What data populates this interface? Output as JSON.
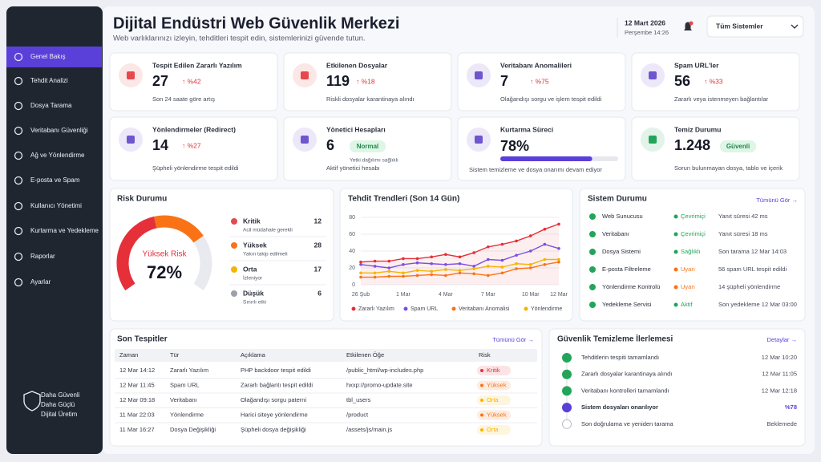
{
  "sidebar": {
    "items": [
      "Genel Bakış",
      "Tehdit Analizi",
      "Dosya Tarama",
      "Veritabanı Güvenliği",
      "Ağ ve Yönlendirme",
      "E-posta ve Spam",
      "Kullanıcı Yönetimi",
      "Kurtarma ve Yedekleme",
      "Raporlar",
      "Ayarlar"
    ],
    "footer": [
      "Daha Güvenli",
      "Daha Güçlü",
      "Dijital Üretim"
    ]
  },
  "header": {
    "title": "Dijital Endüstri Web Güvenlik Merkezi",
    "subtitle": "Web varlıklarınızı izleyin, tehditleri tespit edin, sistemlerinizi güvende tutun.",
    "date": "12 Mart 2026",
    "time": "Perşembe 14:26",
    "system_select": "Tüm Sistemler"
  },
  "cards": [
    {
      "title": "Tespit Edilen Zararlı Yazılım",
      "value": "27",
      "change": "↑ %42",
      "note": "Son 24 saate göre artış",
      "color": "#e5484d"
    },
    {
      "title": "Etkilenen Dosyalar",
      "value": "119",
      "change": "↑ %18",
      "note": "Riskli dosyalar karantinaya alındı",
      "color": "#e5484d"
    },
    {
      "title": "Veritabanı Anomalileri",
      "value": "7",
      "change": "↑ %75",
      "note": "Olağandışı sorgu ve işlem tespit edildi",
      "color": "#6e56cf"
    },
    {
      "title": "Spam URL'ler",
      "value": "56",
      "change": "↑ %33",
      "note": "Zararlı veya istenmeyen bağlantılar",
      "color": "#6e56cf"
    },
    {
      "title": "Yönlendirmeler (Redirect)",
      "value": "14",
      "change": "↑ %27",
      "note": "Şüpheli yönlendirme tespit edildi",
      "color": "#6e56cf"
    },
    {
      "title": "Yönetici Hesapları",
      "value": "6",
      "badge": "Normal",
      "note": "Aktif yönetici hesabı",
      "extra": "Yetki dağılımı sağlıklı",
      "color": "#6e56cf"
    },
    {
      "title": "Kurtarma Süreci",
      "progress": {
        "value": 78,
        "label": "78%"
      },
      "note": "Sistem temizleme ve dosya onarımı devam ediyor",
      "color": "#6e56cf"
    },
    {
      "title": "Temiz Durumu",
      "value": "1.248",
      "badge": "Güvenli",
      "note": "Sorun bulunmayan dosya, tablo ve içerik",
      "color": "#22a55b"
    }
  ],
  "risk": {
    "title": "Risk Durumu",
    "level": "Yüksek Risk",
    "score": {
      "value": 72,
      "label": "72%"
    },
    "levels": [
      {
        "name": "Kritik",
        "desc": "Acil müdahale gerekli",
        "count": 12,
        "color": "#e5484d"
      },
      {
        "name": "Yüksek",
        "desc": "Yakın takip edilmeli",
        "count": 28,
        "color": "#f97316"
      },
      {
        "name": "Orta",
        "desc": "İzleniyor",
        "count": 17,
        "color": "#f5b400"
      },
      {
        "name": "Düşük",
        "desc": "Sınırlı etki",
        "count": 6,
        "color": "#9aa0ac"
      }
    ]
  },
  "trend": {
    "type": "line",
    "title": "Tehdit Trendleri (Son 14 Gün)",
    "categories": [
      "26 Şub",
      null,
      null,
      "1 Mar",
      null,
      null,
      "4 Mar",
      null,
      null,
      "7 Mar",
      null,
      null,
      "10 Mar",
      null,
      "12 Mar"
    ],
    "ylim": [
      0,
      80
    ],
    "yticks": [
      0,
      20,
      40,
      60,
      80
    ],
    "grid": true,
    "series": [
      {
        "name": "Zararlı Yazılım",
        "color": "#e5303a",
        "values": [
          27,
          28,
          28,
          31,
          31,
          33,
          36,
          33,
          38,
          45,
          48,
          52,
          58,
          66,
          72
        ]
      },
      {
        "name": "Spam URL",
        "color": "#7a4fe0",
        "values": [
          24,
          22,
          20,
          24,
          26,
          25,
          24,
          25,
          22,
          30,
          29,
          35,
          40,
          48,
          43
        ]
      },
      {
        "name": "Veritabanı Anomalisi",
        "color": "#f97316",
        "values": [
          9,
          9,
          10,
          10,
          11,
          12,
          11,
          14,
          13,
          11,
          14,
          19,
          20,
          24,
          27
        ]
      },
      {
        "name": "Yönlendirme",
        "color": "#f5b400",
        "values": [
          14,
          14,
          16,
          14,
          17,
          16,
          18,
          17,
          19,
          22,
          21,
          25,
          24,
          30,
          30
        ]
      }
    ]
  },
  "system": {
    "title": "Sistem Durumu",
    "link": "Tümünü Gör →",
    "rows": [
      {
        "name": "Web Sunucusu",
        "status": "Çevrimiçi",
        "detail": "Yanıt süresi  42 ms",
        "color": "#22a55b"
      },
      {
        "name": "Veritabanı",
        "status": "Çevrimiçi",
        "detail": "Yanıt süresi  18 ms",
        "color": "#22a55b"
      },
      {
        "name": "Dosya Sistemi",
        "status": "Sağlıklı",
        "detail": "Son tarama 12 Mar 14:03",
        "color": "#22a55b"
      },
      {
        "name": "E-posta Filtreleme",
        "status": "Uyarı",
        "detail": "56 spam URL tespit edildi",
        "color": "#f97316"
      },
      {
        "name": "Yönlendirme Kontrolü",
        "status": "Uyarı",
        "detail": "14 şüpheli yönlendirme",
        "color": "#f97316"
      },
      {
        "name": "Yedekleme Servisi",
        "status": "Aktif",
        "detail": "Son yedekleme 12 Mar 03:00",
        "color": "#22a55b"
      }
    ]
  },
  "detections": {
    "title": "Son Tespitler",
    "link": "Tümünü Gör →",
    "columns": [
      "Zaman",
      "Tür",
      "Açıklama",
      "Etkilenen Öğe",
      "Risk"
    ],
    "rows": [
      [
        "12 Mar 14:12",
        "Zararlı Yazılım",
        "PHP backdoor tespit edildi",
        "/public_html/wp-includes.php",
        "Kritik"
      ],
      [
        "12 Mar 11:45",
        "Spam URL",
        "Zararlı bağlantı tespit edildi",
        "hxxp://promo-update.site",
        "Yüksek"
      ],
      [
        "12 Mar 09:18",
        "Veritabanı",
        "Olağandışı sorgu paterni",
        "tbl_users",
        "Orta"
      ],
      [
        "11 Mar 22:03",
        "Yönlendirme",
        "Harici siteye yönlendirme",
        "/product",
        "Yüksek"
      ],
      [
        "11 Mar 16:27",
        "Dosya Değişikliği",
        "Şüpheli dosya değişikliği",
        "/assets/js/main.js",
        "Orta"
      ]
    ]
  },
  "cleanup": {
    "title": "Güvenlik Temizleme İlerlemesi",
    "link": "Detaylar →",
    "steps": [
      {
        "text": "Tehditlerin tespiti tamamlandı",
        "time": "12 Mar 10:20",
        "state": "done"
      },
      {
        "text": "Zararlı dosyalar karantinaya alındı",
        "time": "12 Mar 11:05",
        "state": "done"
      },
      {
        "text": "Veritabanı kontrolleri tamamlandı",
        "time": "12 Mar 12:18",
        "state": "done"
      },
      {
        "text": "Sistem dosyaları onarılıyor",
        "time": "%78",
        "state": "active"
      },
      {
        "text": "Son doğrulama ve yeniden tarama",
        "time": "Beklemede",
        "state": "pending"
      }
    ]
  }
}
